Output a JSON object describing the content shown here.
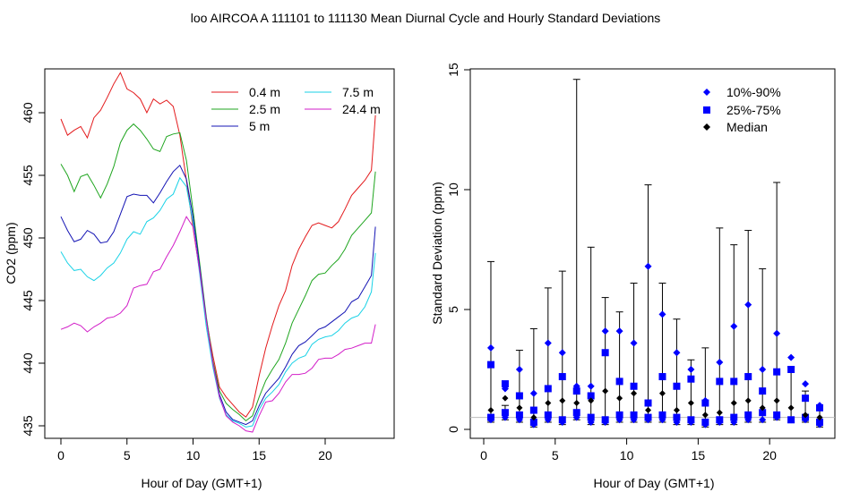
{
  "title": "loo   AIRCOA A   111101 to 111130   Mean Diurnal Cycle and Hourly Standard Deviations",
  "chart_data": [
    {
      "type": "line",
      "xlabel": "Hour of Day (GMT+1)",
      "ylabel": "CO2 (ppm)",
      "xlim": [
        0,
        24
      ],
      "ylim": [
        434,
        463.5
      ],
      "xticks": [
        0,
        5,
        10,
        15,
        20
      ],
      "yticks": [
        435,
        440,
        445,
        450,
        455,
        460
      ],
      "legend": "top-right",
      "x": [
        0.0,
        0.5,
        1.0,
        1.5,
        2.0,
        2.5,
        3.0,
        3.5,
        4.0,
        4.5,
        5.0,
        5.5,
        6.0,
        6.5,
        7.0,
        7.5,
        8.0,
        8.5,
        9.0,
        9.5,
        10.0,
        10.5,
        11.0,
        11.5,
        12.0,
        12.5,
        13.0,
        13.5,
        14.0,
        14.5,
        15.0,
        15.5,
        16.0,
        16.5,
        17.0,
        17.5,
        18.0,
        18.5,
        19.0,
        19.5,
        20.0,
        20.5,
        21.0,
        21.5,
        22.0,
        22.5,
        23.0,
        23.5,
        23.8
      ],
      "series": [
        {
          "name": "0.4 m",
          "color": "#e31a1c",
          "values": [
            459.5,
            458.2,
            458.6,
            458.9,
            458.0,
            459.6,
            460.2,
            461.2,
            462.3,
            463.2,
            461.9,
            461.6,
            461.1,
            460.0,
            461.1,
            460.7,
            461.0,
            460.5,
            458.2,
            454.6,
            450.8,
            447.3,
            443.5,
            440.6,
            438.1,
            437.3,
            436.7,
            436.1,
            435.7,
            436.5,
            439.0,
            441.2,
            443.0,
            444.6,
            445.8,
            447.8,
            449.1,
            450.1,
            451.0,
            451.2,
            451.0,
            450.8,
            451.3,
            452.3,
            453.4,
            454.0,
            454.6,
            455.4,
            459.8
          ]
        },
        {
          "name": "2.5 m",
          "color": "#1fa51f",
          "values": [
            455.9,
            455.0,
            453.7,
            454.9,
            455.1,
            454.2,
            453.2,
            454.3,
            455.7,
            457.6,
            458.6,
            459.1,
            458.6,
            457.9,
            457.1,
            456.9,
            458.1,
            458.3,
            458.4,
            456.2,
            452.2,
            448.0,
            443.7,
            440.2,
            437.8,
            436.8,
            436.3,
            435.9,
            435.4,
            435.8,
            437.3,
            438.6,
            439.5,
            440.3,
            441.6,
            443.2,
            444.3,
            445.4,
            446.6,
            447.1,
            447.2,
            447.8,
            448.3,
            449.1,
            450.2,
            450.8,
            451.4,
            452.0,
            455.3
          ]
        },
        {
          "name": "5 m",
          "color": "#1414b4",
          "values": [
            451.7,
            450.6,
            449.7,
            449.9,
            450.6,
            450.3,
            449.6,
            449.7,
            450.5,
            451.9,
            453.3,
            453.5,
            453.4,
            453.4,
            452.8,
            453.6,
            454.5,
            455.3,
            455.8,
            454.7,
            451.7,
            447.7,
            443.5,
            440.0,
            437.5,
            436.1,
            435.5,
            435.3,
            435.1,
            435.4,
            436.6,
            437.6,
            438.2,
            438.8,
            439.7,
            440.7,
            441.4,
            441.7,
            442.2,
            442.7,
            442.9,
            443.3,
            443.7,
            444.1,
            444.9,
            445.2,
            446.1,
            447.0,
            450.9
          ]
        },
        {
          "name": "7.5 m",
          "color": "#19d2e6",
          "values": [
            448.9,
            448.0,
            447.4,
            447.5,
            446.9,
            446.6,
            447.0,
            447.6,
            448.0,
            448.8,
            449.9,
            450.5,
            450.3,
            451.3,
            451.6,
            452.2,
            453.1,
            453.5,
            454.8,
            454.1,
            451.2,
            447.1,
            442.9,
            439.7,
            437.2,
            435.9,
            435.4,
            435.2,
            434.9,
            435.0,
            436.3,
            437.2,
            437.7,
            438.3,
            439.3,
            440.0,
            440.4,
            440.6,
            441.5,
            441.9,
            442.1,
            442.2,
            442.6,
            443.2,
            443.6,
            443.8,
            444.5,
            445.7,
            448.8
          ]
        },
        {
          "name": "24.4 m",
          "color": "#d21ec8",
          "values": [
            442.7,
            442.9,
            443.2,
            443.0,
            442.5,
            442.9,
            443.2,
            443.6,
            443.7,
            444.0,
            444.6,
            446.0,
            446.2,
            446.3,
            447.3,
            447.5,
            448.5,
            449.4,
            450.5,
            451.7,
            450.9,
            447.4,
            443.4,
            440.0,
            437.3,
            435.8,
            435.3,
            435.0,
            434.6,
            434.5,
            435.8,
            436.9,
            437.0,
            437.6,
            438.5,
            439.1,
            439.1,
            439.2,
            439.6,
            440.3,
            440.4,
            440.4,
            440.7,
            441.1,
            441.2,
            441.4,
            441.6,
            441.6,
            443.1
          ]
        }
      ]
    },
    {
      "type": "scatter",
      "xlabel": "Hour of Day (GMT+1)",
      "ylabel": "Standard Deviation (ppm)",
      "xlim": [
        0,
        24
      ],
      "ylim": [
        0,
        15
      ],
      "xticks": [
        0,
        5,
        10,
        15,
        20
      ],
      "yticks": [
        0,
        5,
        10,
        15
      ],
      "reference_line": 0.5,
      "legend": "top-right",
      "x": [
        0.5,
        1.5,
        2.5,
        3.5,
        4.5,
        5.5,
        6.5,
        7.5,
        8.5,
        9.5,
        10.5,
        11.5,
        12.5,
        13.5,
        14.5,
        15.5,
        16.5,
        17.5,
        18.5,
        19.5,
        20.5,
        21.5,
        22.5,
        23.5
      ],
      "whisker_top": [
        7.0,
        1.0,
        3.3,
        4.2,
        5.9,
        6.6,
        14.6,
        7.6,
        5.5,
        4.9,
        6.1,
        10.2,
        6.1,
        4.6,
        2.9,
        3.4,
        8.4,
        7.7,
        8.3,
        6.7,
        10.3,
        2.6,
        1.6,
        1.0
      ],
      "whisker_bottom": [
        0.3,
        0.4,
        0.3,
        0.1,
        0.3,
        0.2,
        0.4,
        0.2,
        0.2,
        0.3,
        0.3,
        0.3,
        0.3,
        0.2,
        0.2,
        0.1,
        0.2,
        0.2,
        0.3,
        0.3,
        0.4,
        0.3,
        0.3,
        0.1
      ],
      "series": [
        {
          "name": "10%-90%",
          "color": "#0000ff",
          "marker": "diamond",
          "high": [
            3.4,
            1.7,
            2.5,
            1.5,
            3.6,
            3.2,
            1.8,
            1.8,
            4.1,
            4.1,
            3.6,
            6.8,
            4.8,
            3.2,
            2.5,
            1.2,
            2.8,
            4.3,
            5.2,
            2.5,
            4.0,
            3.0,
            1.9,
            1.0
          ],
          "low": [
            0.4,
            0.5,
            0.4,
            0.2,
            0.4,
            0.3,
            0.5,
            0.3,
            0.3,
            0.4,
            0.4,
            0.4,
            0.4,
            0.3,
            0.3,
            0.2,
            0.3,
            0.3,
            0.4,
            0.4,
            0.5,
            0.4,
            0.4,
            0.2
          ]
        },
        {
          "name": "25%-75%",
          "color": "#0000ff",
          "marker": "square",
          "high": [
            2.7,
            1.9,
            1.4,
            0.8,
            1.7,
            2.2,
            1.6,
            1.4,
            3.2,
            2.0,
            1.8,
            1.1,
            2.2,
            1.8,
            2.1,
            1.1,
            2.0,
            2.0,
            2.2,
            1.6,
            2.4,
            2.5,
            1.3,
            0.9
          ],
          "low": [
            0.5,
            0.7,
            0.6,
            0.3,
            0.6,
            0.4,
            0.7,
            0.5,
            0.4,
            0.6,
            0.6,
            0.5,
            0.6,
            0.5,
            0.4,
            0.3,
            0.4,
            0.5,
            0.6,
            0.7,
            0.6,
            0.4,
            0.5,
            0.3
          ]
        },
        {
          "name": "Median",
          "color": "#000000",
          "marker": "diamond",
          "values": [
            0.8,
            1.3,
            0.9,
            0.5,
            1.1,
            1.2,
            1.1,
            1.2,
            1.6,
            1.3,
            1.5,
            0.8,
            1.5,
            0.8,
            1.1,
            0.6,
            0.7,
            1.1,
            1.2,
            0.9,
            1.2,
            0.9,
            0.6,
            0.5
          ]
        }
      ]
    }
  ]
}
